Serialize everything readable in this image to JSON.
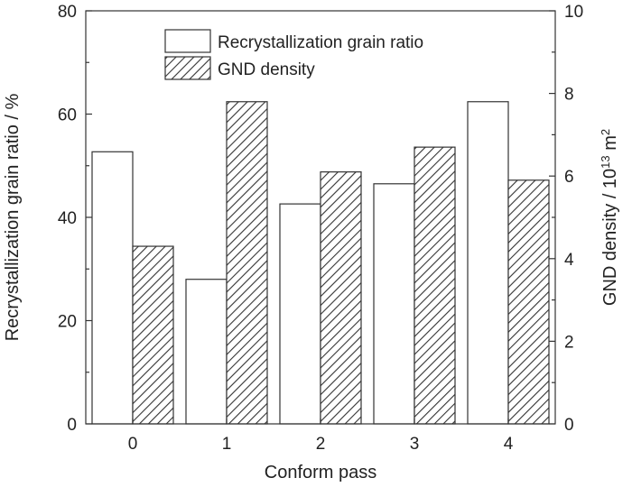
{
  "chart_data": {
    "type": "bar",
    "title": "",
    "xlabel": "Conform pass",
    "ylabel": "Recrystallization grain ratio / %",
    "y2label": "GND density / 10",
    "y2label_sup": "13",
    "y2label_unit": " m",
    "y2label_unit_sup": "2",
    "categories": [
      "0",
      "1",
      "2",
      "3",
      "4"
    ],
    "ylim": [
      0,
      80
    ],
    "y2lim": [
      0,
      10
    ],
    "yticks": [
      "0",
      "20",
      "40",
      "60",
      "80"
    ],
    "y2ticks": [
      "0",
      "2",
      "4",
      "6",
      "8",
      "10"
    ],
    "legend_position": "top-center",
    "series": [
      {
        "name": "Recrystallization grain ratio",
        "axis": "left",
        "fill": "#ffffff",
        "pattern": "none",
        "values": [
          52.7,
          28.0,
          42.6,
          46.5,
          62.4
        ]
      },
      {
        "name": "GND density",
        "axis": "right",
        "fill": "hatched",
        "pattern": "diagonal-hatch",
        "values": [
          4.3,
          7.8,
          6.1,
          6.7,
          5.9
        ]
      }
    ]
  }
}
